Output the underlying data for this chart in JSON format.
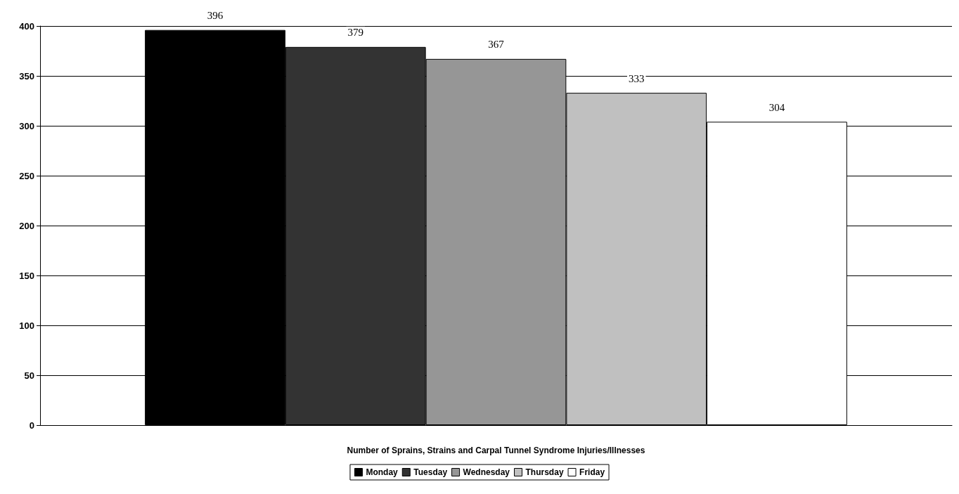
{
  "chart_data": {
    "type": "bar",
    "categories": [
      null
    ],
    "xlabel": "Number of Sprains, Strains and Carpal Tunnel Syndrome Injuries/Illnesses",
    "series": [
      {
        "name": "Monday",
        "color": "#000000",
        "values": [
          396
        ]
      },
      {
        "name": "Tuesday",
        "color": "#333333",
        "values": [
          379
        ]
      },
      {
        "name": "Wednesday",
        "color": "#969696",
        "values": [
          367
        ]
      },
      {
        "name": "Thursday",
        "color": "#c0c0c0",
        "values": [
          333
        ]
      },
      {
        "name": "Friday",
        "color": "#ffffff",
        "values": [
          304
        ]
      }
    ],
    "ylim": [
      0,
      400
    ],
    "yticks": [
      0,
      50,
      100,
      150,
      200,
      250,
      300,
      350,
      400
    ],
    "grid": "y",
    "legend": "bottom",
    "data_labels": true
  }
}
